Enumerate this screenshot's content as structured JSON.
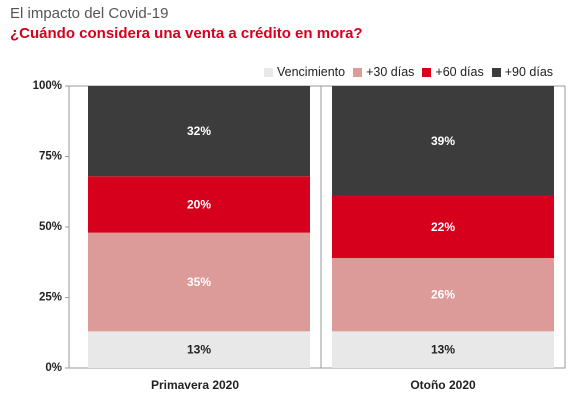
{
  "header": {
    "title": "El impacto del Covid-19",
    "subtitle": "¿Cuándo considera una venta a crédito en mora?"
  },
  "chart_data": {
    "type": "bar",
    "stacked": true,
    "percent": true,
    "categories": [
      "Primavera 2020",
      "Otoño 2020"
    ],
    "series": [
      {
        "name": "Vencimiento",
        "color": "#e8e8e8",
        "label_color": "#222222",
        "values": [
          13,
          13
        ]
      },
      {
        "name": "+30 días",
        "color": "#dc9a98",
        "label_color": "#ffffff",
        "values": [
          35,
          26
        ]
      },
      {
        "name": "+60 días",
        "color": "#d6001c",
        "label_color": "#ffffff",
        "values": [
          20,
          22
        ]
      },
      {
        "name": "+90 días",
        "color": "#3c3c3c",
        "label_color": "#ffffff",
        "values": [
          32,
          39
        ]
      }
    ],
    "ylim": [
      0,
      100
    ],
    "yticks": [
      0,
      25,
      50,
      75,
      100
    ],
    "ytick_labels": [
      "0%",
      "25%",
      "50%",
      "75%",
      "100%"
    ],
    "legend_position": "top-right",
    "grid": false
  }
}
